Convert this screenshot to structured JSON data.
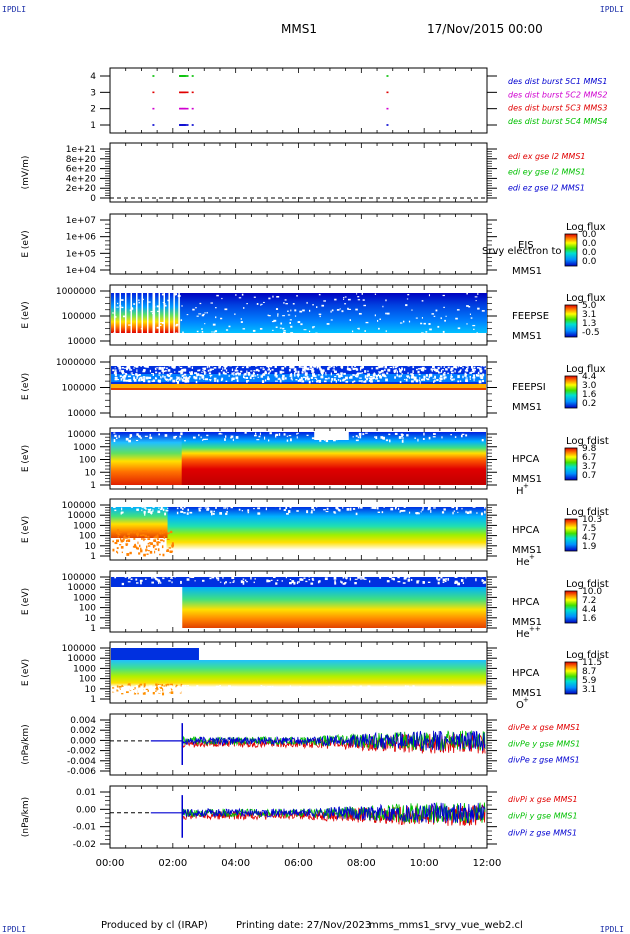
{
  "corners": {
    "tl": "IPDLI",
    "tr": "IPDLI",
    "bl": "IPDLI",
    "br": "IPDLI"
  },
  "header": {
    "spacecraft": "MMS1",
    "date": "17/Nov/2015 00:00"
  },
  "footer": {
    "producer": "Produced by cl (IRAP)",
    "printing": "Printing date: 27/Nov/2023",
    "file": "mms_mms1_srvy_vue_web2.cl"
  },
  "colors": {
    "red": "#e00000",
    "green": "#00c000",
    "blue": "#0000d0",
    "magenta": "#d000d0",
    "frame": "#000000"
  },
  "chart_data": [
    {
      "type": "scatter",
      "panel": "des_dist_burst",
      "y_ticks": [
        "4",
        "3",
        "2",
        "1"
      ],
      "legend": [
        {
          "text": "des dist burst 5C1 MMS1",
          "color": "#0000d0"
        },
        {
          "text": "des dist burst 5C2 MMS2",
          "color": "#d000d0"
        },
        {
          "text": "des dist burst 5C3 MMS3",
          "color": "#e00000"
        },
        {
          "text": "des dist burst 5C4 MMS4",
          "color": "#00c000"
        }
      ],
      "series": [
        {
          "name": "des dist burst 5C1 MMS1",
          "level": 1,
          "color": "#0000d0",
          "hours": [
            1.35,
            2.2,
            2.25,
            2.3,
            2.35,
            2.6,
            8.8
          ]
        },
        {
          "name": "des dist burst 5C2 MMS2",
          "level": 2,
          "color": "#d000d0",
          "hours": [
            1.35,
            2.2,
            2.25,
            2.3,
            2.35,
            2.6,
            8.8
          ]
        },
        {
          "name": "des dist burst 5C3 MMS3",
          "level": 3,
          "color": "#e00000",
          "hours": [
            1.35,
            2.2,
            2.25,
            2.3,
            2.35,
            2.6,
            8.8
          ]
        },
        {
          "name": "des dist burst 5C4 MMS4",
          "level": 4,
          "color": "#00c000",
          "hours": [
            1.35,
            2.2,
            2.25,
            2.3,
            2.35,
            2.6,
            8.8
          ]
        }
      ]
    },
    {
      "type": "line",
      "panel": "edi_e",
      "ylabel": "(mV/m)",
      "y_ticks": [
        "1e+21",
        "8e+20",
        "6e+20",
        "4e+20",
        "2e+20",
        "0"
      ],
      "legend": [
        {
          "text": "edi ex gse l2 MMS1",
          "color": "#e00000"
        },
        {
          "text": "edi ey gse l2 MMS1",
          "color": "#00c000"
        },
        {
          "text": "edi ez gse l2 MMS1",
          "color": "#0000d0"
        }
      ],
      "dashed_zero": true
    },
    {
      "type": "heatmap",
      "panel": "eis",
      "ylabel": "E (eV)",
      "y_ticks": [
        "1e+07",
        "1e+06",
        "1e+05",
        "1e+04"
      ],
      "labels": [
        "EIS",
        "MMS1"
      ],
      "overlay_text": "Srvy electron to",
      "colorbar_title": "Log flux",
      "colorbar_ticks": [
        "0.0",
        "0.0",
        "0.0",
        "0.0"
      ],
      "empty": true
    },
    {
      "type": "heatmap",
      "panel": "feepse",
      "ylabel": "E (eV)",
      "y_ticks": [
        "1000000",
        "100000",
        "10000"
      ],
      "labels": [
        "FEEPSE",
        "MMS1"
      ],
      "colorbar_title": "Log flux",
      "colorbar_ticks": [
        "5.0",
        "3.1",
        "1.3",
        "-0.5"
      ]
    },
    {
      "type": "heatmap",
      "panel": "feepsi",
      "ylabel": "E (eV)",
      "y_ticks": [
        "1000000",
        "100000",
        "10000"
      ],
      "labels": [
        "FEEPSI",
        "MMS1"
      ],
      "colorbar_title": "Log flux",
      "colorbar_ticks": [
        "4.4",
        "3.0",
        "1.6",
        "0.2"
      ]
    },
    {
      "type": "heatmap",
      "panel": "hpca_h",
      "ylabel": "E (eV)",
      "y_ticks": [
        "10000",
        "1000",
        "100",
        "10",
        "1"
      ],
      "labels": [
        "HPCA",
        "MMS1"
      ],
      "species": "H",
      "species_sup": "+",
      "colorbar_title": "Log fdist",
      "colorbar_ticks": [
        "9.8",
        "6.7",
        "3.7",
        "0.7"
      ]
    },
    {
      "type": "heatmap",
      "panel": "hpca_he",
      "ylabel": "E (eV)",
      "y_ticks": [
        "100000",
        "10000",
        "1000",
        "100",
        "10",
        "1"
      ],
      "labels": [
        "HPCA",
        "MMS1"
      ],
      "species": "He",
      "species_sup": "+",
      "colorbar_title": "Log fdist",
      "colorbar_ticks": [
        "10.3",
        "7.5",
        "4.7",
        "1.9"
      ]
    },
    {
      "type": "heatmap",
      "panel": "hpca_hepp",
      "ylabel": "E (eV)",
      "y_ticks": [
        "100000",
        "10000",
        "1000",
        "100",
        "10",
        "1"
      ],
      "labels": [
        "HPCA",
        "MMS1"
      ],
      "species": "He",
      "species_sup": "++",
      "colorbar_title": "Log fdist",
      "colorbar_ticks": [
        "10.0",
        "7.2",
        "4.4",
        "1.6"
      ]
    },
    {
      "type": "heatmap",
      "panel": "hpca_o",
      "ylabel": "E (eV)",
      "y_ticks": [
        "100000",
        "10000",
        "1000",
        "100",
        "10",
        "1"
      ],
      "labels": [
        "HPCA",
        "MMS1"
      ],
      "species": "O",
      "species_sup": "+",
      "colorbar_title": "Log fdist",
      "colorbar_ticks": [
        "11.5",
        "8.7",
        "5.9",
        "3.1"
      ]
    },
    {
      "type": "line",
      "panel": "divpe",
      "ylabel": "(nPa/km)",
      "y_ticks": [
        "0.004",
        "0.002",
        "0.000",
        "-0.002",
        "-0.004",
        "-0.006"
      ],
      "ylim": [
        -0.0065,
        0.0045
      ],
      "legend": [
        {
          "text": "divPe x gse MMS1",
          "color": "#e00000"
        },
        {
          "text": "divPe y gse MMS1",
          "color": "#00c000"
        },
        {
          "text": "divPe z gse MMS1",
          "color": "#0000d0"
        }
      ]
    },
    {
      "type": "line",
      "panel": "divpi",
      "ylabel": "(nPa/km)",
      "y_ticks": [
        "0.01",
        "0.00",
        "-0.01",
        "-0.02"
      ],
      "ylim": [
        -0.024,
        0.016
      ],
      "legend": [
        {
          "text": "divPi x gse MMS1",
          "color": "#e00000"
        },
        {
          "text": "divPi y gse MMS1",
          "color": "#00c000"
        },
        {
          "text": "divPi z gse MMS1",
          "color": "#0000d0"
        }
      ]
    }
  ],
  "time_axis": {
    "ticks": [
      "00:00",
      "02:00",
      "04:00",
      "06:00",
      "08:00",
      "10:00",
      "12:00"
    ],
    "range_hours": [
      0,
      12
    ]
  }
}
